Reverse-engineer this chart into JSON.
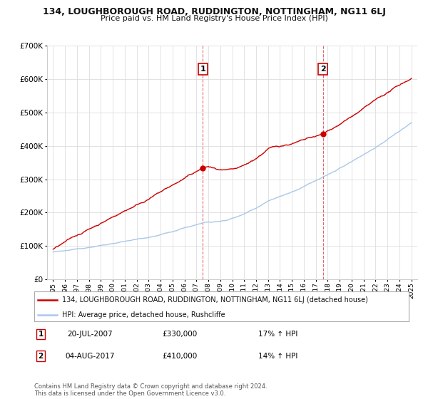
{
  "title": "134, LOUGHBOROUGH ROAD, RUDDINGTON, NOTTINGHAM, NG11 6LJ",
  "subtitle": "Price paid vs. HM Land Registry's House Price Index (HPI)",
  "background_color": "#ffffff",
  "grid_color": "#dddddd",
  "property_color": "#cc0000",
  "hpi_color": "#aac8e8",
  "sale1": {
    "date": "20-JUL-2007",
    "price": 330000,
    "hpi_pct": "17%"
  },
  "sale2": {
    "date": "04-AUG-2017",
    "price": 410000,
    "hpi_pct": "14%"
  },
  "legend_property": "134, LOUGHBOROUGH ROAD, RUDDINGTON, NOTTINGHAM, NG11 6LJ (detached house)",
  "legend_hpi": "HPI: Average price, detached house, Rushcliffe",
  "footer": "Contains HM Land Registry data © Crown copyright and database right 2024.\nThis data is licensed under the Open Government Licence v3.0.",
  "ylim": [
    0,
    700000
  ],
  "yticks": [
    0,
    100000,
    200000,
    300000,
    400000,
    500000,
    600000,
    700000
  ],
  "sale1_x": 2007.54,
  "sale2_x": 2017.59
}
